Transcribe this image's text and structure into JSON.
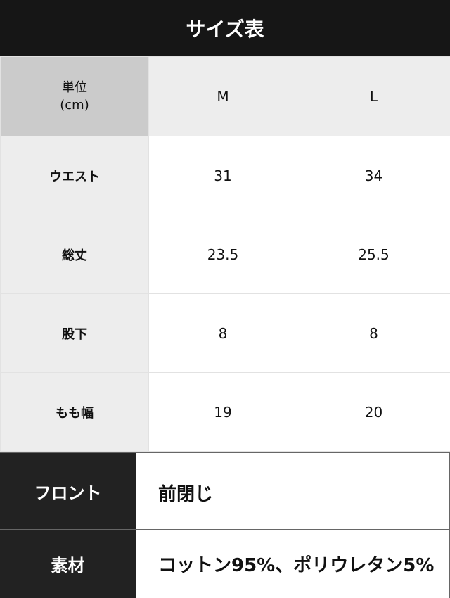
{
  "title": "サイズ表",
  "table": {
    "unit_label": "単位",
    "unit": "(cm)",
    "sizes": [
      "M",
      "L"
    ],
    "rows": [
      {
        "label": "ウエスト",
        "values": [
          "31",
          "34"
        ]
      },
      {
        "label": "総丈",
        "values": [
          "23.5",
          "25.5"
        ]
      },
      {
        "label": "股下",
        "values": [
          "8",
          "8"
        ]
      },
      {
        "label": "もも幅",
        "values": [
          "19",
          "20"
        ]
      }
    ]
  },
  "info": [
    {
      "label": "フロント",
      "value": "前閉じ"
    },
    {
      "label": "素材",
      "value": "コットン95%、ポリウレタン5%"
    }
  ]
}
